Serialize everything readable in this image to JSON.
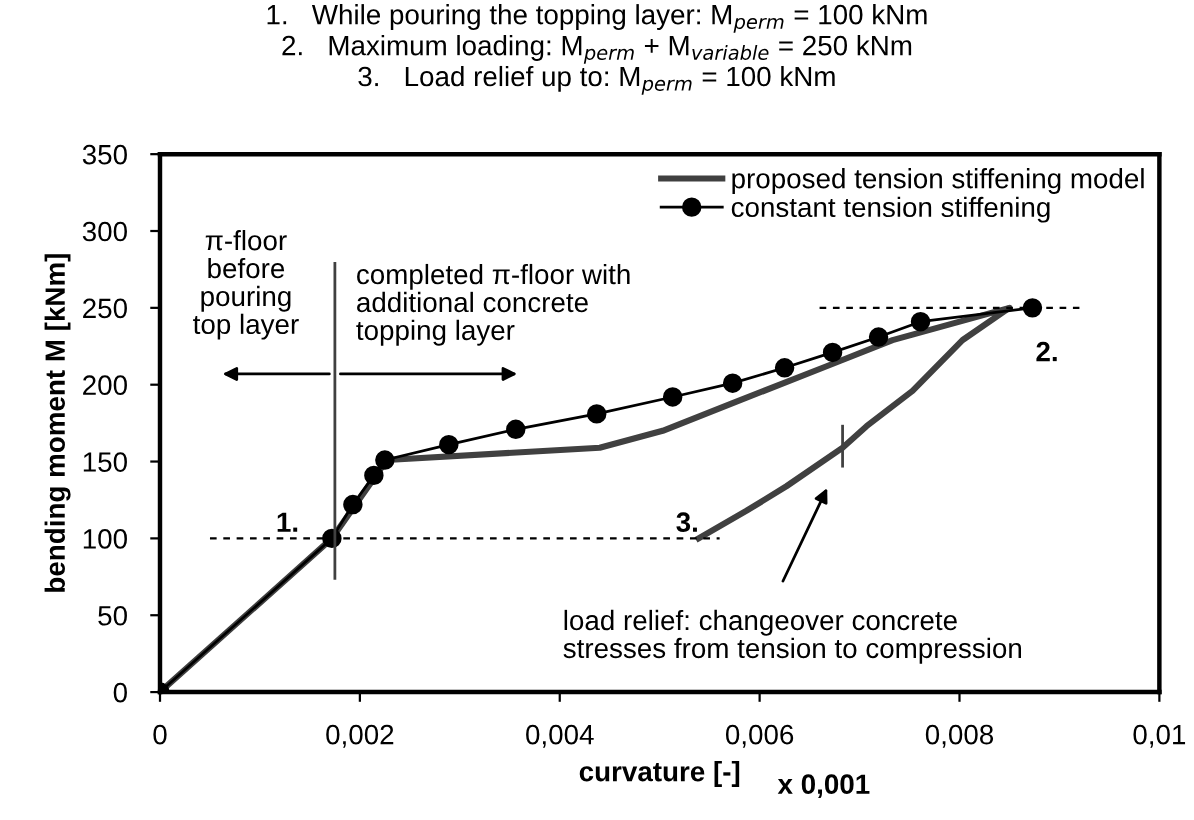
{
  "chart_data": {
    "type": "line",
    "title": "1.   While pouring the topping layer: M$_{perm}$ = 100 kNm\n2.   Maximum loading: M$_{perm}$ + M$_{variable}$ = 250 kNm\n3.   Load relief up to: M$_{perm}$ = 100 kNm",
    "xlabel": "curvature [-]",
    "ylabel": "bending moment M [kNm]",
    "xlim": [
      0,
      0.01
    ],
    "ylim": [
      0,
      350
    ],
    "xticks": [
      0,
      {
        "value": 0.002,
        "label": "0,002"
      },
      {
        "value": 0.004,
        "label": "0,004"
      },
      {
        "value": 0.006,
        "label": "0,006"
      },
      {
        "value": 0.008,
        "label": "0,008"
      },
      {
        "value": 0.01,
        "label": "0,01"
      }
    ],
    "yticks": [
      0,
      50,
      100,
      150,
      200,
      250,
      300,
      350
    ],
    "grid": false,
    "legend": "top right",
    "series": [
      {
        "name": "proposed tension stiffening model",
        "color": "#404040",
        "marker": "none",
        "line_style": "solid",
        "x": [
          0,
          0.00172,
          0.00227,
          0.0044,
          0.00503,
          0.00573,
          0.00667,
          0.00733,
          0.0085,
          0.00803,
          0.00753,
          0.00707,
          0.00683,
          0.00627,
          0.00587,
          0.00539
        ],
        "values": [
          0,
          100,
          151,
          159,
          170,
          188,
          212,
          229,
          250,
          229,
          196,
          173,
          159,
          134,
          118,
          100
        ]
      },
      {
        "name": "constant tension stiffening",
        "color": "#000000",
        "marker": "circle",
        "line_style": "solid",
        "x": [
          0,
          0.00172,
          0.00193,
          0.00214,
          0.00225,
          0.00289,
          0.00356,
          0.00437,
          0.00513,
          0.00573,
          0.00625,
          0.00673,
          0.00719,
          0.00761,
          0.00873
        ],
        "values": [
          0,
          100,
          122,
          141,
          151,
          161,
          171,
          181,
          192,
          201,
          211,
          221,
          231,
          241,
          250
        ]
      },
      {
        "color": "#000000",
        "marker": "none",
        "line_style": "dashed",
        "x": [
          0.0005,
          0.0056
        ],
        "values": [
          100,
          100
        ]
      },
      {
        "color": "#000000",
        "marker": "none",
        "line_style": "dashed",
        "x": [
          0.0066,
          0.0092
        ],
        "values": [
          250,
          250
        ]
      },
      {
        "color": "#404040",
        "marker": "none",
        "line_style": "solid",
        "x": [
          0.00175,
          0.00175
        ],
        "values": [
          74,
          279
        ]
      }
    ],
    "annotations": [
      "1.",
      "2.",
      "3.",
      "π-floor\nbefore\npouring\ntop layer",
      "completed π-floor with\nadditional concrete\ntopping layer",
      "load relief: changeover concrete\nstresses from tension to compression",
      "x 0,001"
    ]
  }
}
